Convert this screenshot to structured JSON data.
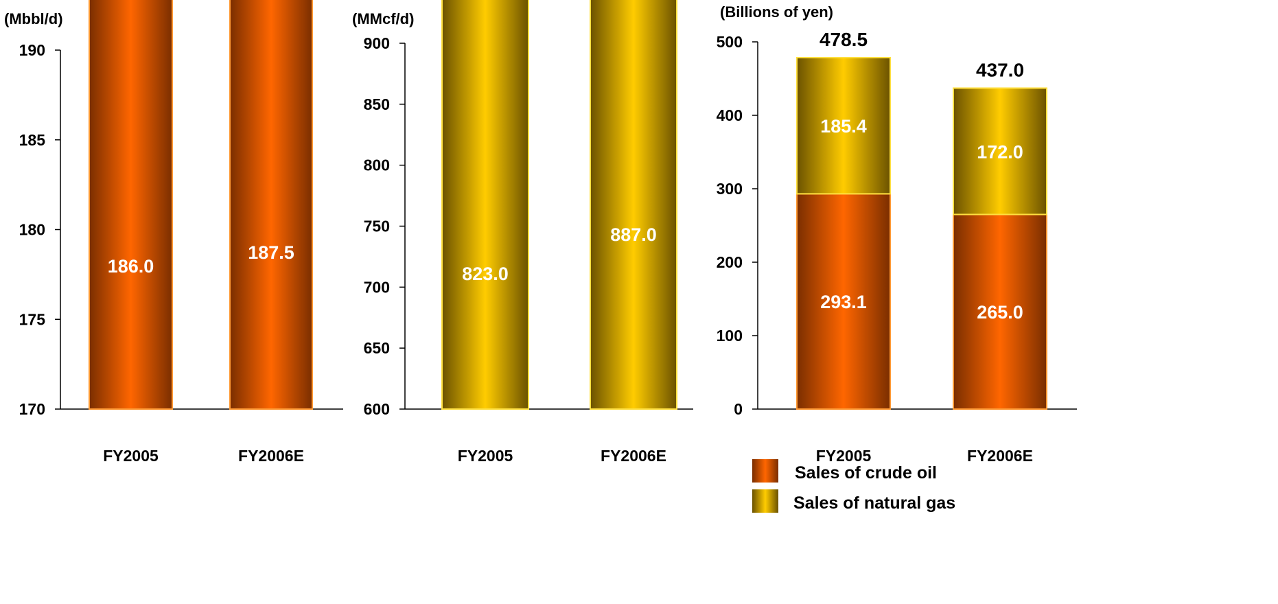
{
  "colors": {
    "orange_mid": "#FF6600",
    "orange_dark": "#7A2E00",
    "gold_mid": "#FFCC00",
    "gold_dark": "#6B5200",
    "edge_orange": "#FF9933",
    "edge_gold": "#FFE040",
    "axis": "#000000",
    "label_dark": "#000000",
    "label_light": "#FFFFFF"
  },
  "legend": {
    "crude_label": "Sales of crude oil",
    "gas_label": "Sales of natural gas"
  },
  "chart_data": [
    {
      "type": "bar",
      "unit_label": "(Mbbl/d)",
      "categories": [
        "FY2005",
        "FY2006E"
      ],
      "ylim": [
        170,
        190
      ],
      "yticks": [
        170,
        175,
        180,
        185,
        190
      ],
      "series": [
        {
          "values": [
            186.0,
            187.5
          ],
          "labels": [
            "186.0",
            "187.5"
          ],
          "color": "orange"
        }
      ],
      "top_labels": [
        "186.0",
        "187.5"
      ]
    },
    {
      "type": "bar",
      "unit_label": "(MMcf/d)",
      "categories": [
        "FY2005",
        "FY2006E"
      ],
      "ylim": [
        600,
        900
      ],
      "yticks": [
        600,
        650,
        700,
        750,
        800,
        850,
        900
      ],
      "series": [
        {
          "values": [
            823.0,
            887.0
          ],
          "labels": [
            "823.0",
            "887.0"
          ],
          "color": "gold"
        }
      ],
      "top_labels": [
        "823.0",
        "887.0"
      ]
    },
    {
      "type": "bar",
      "stacked": true,
      "unit_label": "(Billions of yen)",
      "categories": [
        "FY2005",
        "FY2006E"
      ],
      "ylim": [
        0,
        500
      ],
      "yticks": [
        0,
        100,
        200,
        300,
        400,
        500
      ],
      "series": [
        {
          "name": "Sales of crude oil",
          "values": [
            293.1,
            265.0
          ],
          "labels": [
            "293.1",
            "265.0"
          ],
          "color": "orange"
        },
        {
          "name": "Sales of natural gas",
          "values": [
            185.4,
            172.0
          ],
          "labels": [
            "185.4",
            "172.0"
          ],
          "color": "gold"
        }
      ],
      "top_labels": [
        "478.5",
        "437.0"
      ]
    }
  ]
}
